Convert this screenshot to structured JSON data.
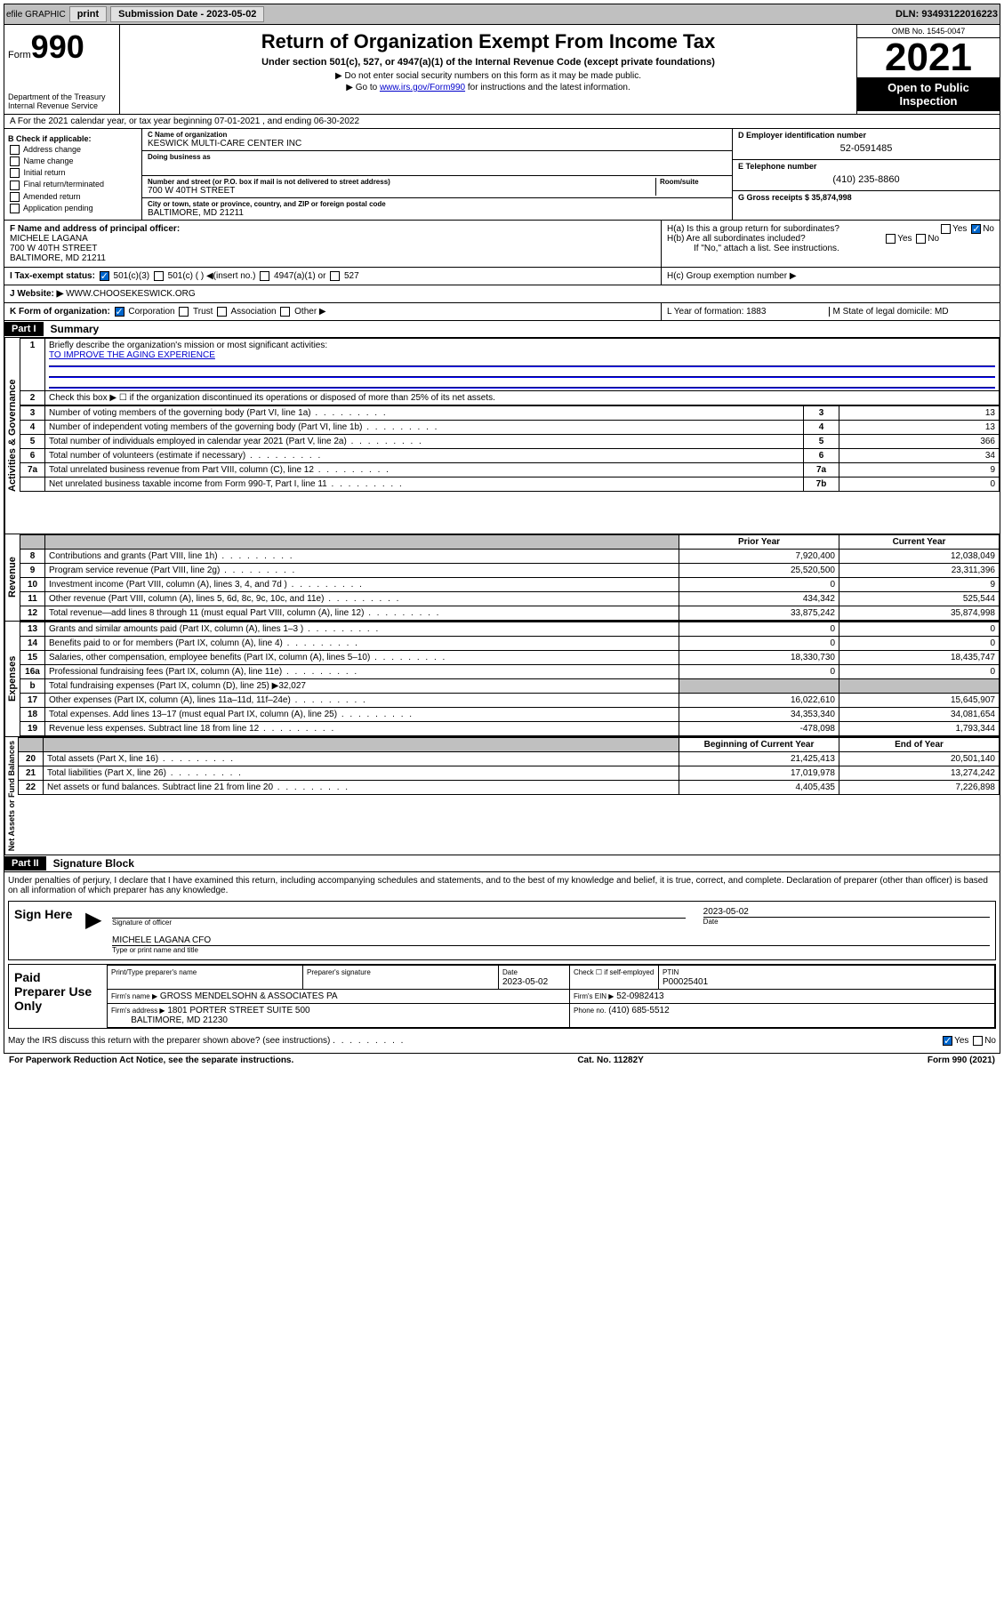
{
  "topbar": {
    "efile": "efile GRAPHIC",
    "print": "print",
    "sub_label": "Submission Date - 2023-05-02",
    "dln_label": "DLN: 93493122016223"
  },
  "header": {
    "form_label": "Form",
    "form_num": "990",
    "dept": "Department of the Treasury\nInternal Revenue Service",
    "title": "Return of Organization Exempt From Income Tax",
    "subtitle": "Under section 501(c), 527, or 4947(a)(1) of the Internal Revenue Code (except private foundations)",
    "instr1": "▶ Do not enter social security numbers on this form as it may be made public.",
    "instr2_pre": "▶ Go to ",
    "instr2_link": "www.irs.gov/Form990",
    "instr2_post": " for instructions and the latest information.",
    "omb": "OMB No. 1545-0047",
    "year": "2021",
    "open": "Open to Public Inspection"
  },
  "row_a": "A For the 2021 calendar year, or tax year beginning 07-01-2021  , and ending 06-30-2022",
  "box_b": {
    "label": "B Check if applicable:",
    "items": [
      "Address change",
      "Name change",
      "Initial return",
      "Final return/terminated",
      "Amended return",
      "Application pending"
    ]
  },
  "box_c": {
    "name_label": "C Name of organization",
    "name": "KESWICK MULTI-CARE CENTER INC",
    "dba_label": "Doing business as",
    "addr_label": "Number and street (or P.O. box if mail is not delivered to street address)",
    "room_label": "Room/suite",
    "addr": "700 W 40TH STREET",
    "city_label": "City or town, state or province, country, and ZIP or foreign postal code",
    "city": "BALTIMORE, MD  21211"
  },
  "box_d": {
    "label": "D Employer identification number",
    "val": "52-0591485"
  },
  "box_e": {
    "label": "E Telephone number",
    "val": "(410) 235-8860"
  },
  "box_g": {
    "label": "G Gross receipts $ 35,874,998"
  },
  "box_f": {
    "label": "F  Name and address of principal officer:",
    "name": "MICHELE LAGANA",
    "addr1": "700 W 40TH STREET",
    "addr2": "BALTIMORE, MD  21211"
  },
  "box_h": {
    "ha": "H(a)  Is this a group return for subordinates?",
    "hb": "H(b)  Are all subordinates included?",
    "hb_note": "If \"No,\" attach a list. See instructions.",
    "hc": "H(c)  Group exemption number ▶"
  },
  "box_i": {
    "label": "I  Tax-exempt status:",
    "opts": [
      "501(c)(3)",
      "501(c) (  ) ◀(insert no.)",
      "4947(a)(1) or",
      "527"
    ]
  },
  "box_j": {
    "label": "J  Website: ▶",
    "val": "WWW.CHOOSEKESWICK.ORG"
  },
  "box_k": {
    "label": "K Form of organization:",
    "opts": [
      "Corporation",
      "Trust",
      "Association",
      "Other ▶"
    ]
  },
  "box_l": {
    "label": "L Year of formation: 1883"
  },
  "box_m": {
    "label": "M State of legal domicile: MD"
  },
  "part1": {
    "header": "Part I",
    "title": "Summary",
    "q1": "Briefly describe the organization's mission or most significant activities:",
    "q1_ans": "TO IMPROVE THE AGING EXPERIENCE",
    "q2": "Check this box ▶ ☐  if the organization discontinued its operations or disposed of more than 25% of its net assets.",
    "vert_labels": [
      "Activities & Governance",
      "Revenue",
      "Expenses",
      "Net Assets or Fund Balances"
    ],
    "gov_rows": [
      {
        "n": "3",
        "desc": "Number of voting members of the governing body (Part VI, line 1a)",
        "box": "3",
        "val": "13"
      },
      {
        "n": "4",
        "desc": "Number of independent voting members of the governing body (Part VI, line 1b)",
        "box": "4",
        "val": "13"
      },
      {
        "n": "5",
        "desc": "Total number of individuals employed in calendar year 2021 (Part V, line 2a)",
        "box": "5",
        "val": "366"
      },
      {
        "n": "6",
        "desc": "Total number of volunteers (estimate if necessary)",
        "box": "6",
        "val": "34"
      },
      {
        "n": "7a",
        "desc": "Total unrelated business revenue from Part VIII, column (C), line 12",
        "box": "7a",
        "val": "9"
      },
      {
        "n": "",
        "desc": "Net unrelated business taxable income from Form 990-T, Part I, line 11",
        "box": "7b",
        "val": "0"
      }
    ],
    "col_hdr_prior": "Prior Year",
    "col_hdr_current": "Current Year",
    "rev_rows": [
      {
        "n": "8",
        "desc": "Contributions and grants (Part VIII, line 1h)",
        "prior": "7,920,400",
        "curr": "12,038,049"
      },
      {
        "n": "9",
        "desc": "Program service revenue (Part VIII, line 2g)",
        "prior": "25,520,500",
        "curr": "23,311,396"
      },
      {
        "n": "10",
        "desc": "Investment income (Part VIII, column (A), lines 3, 4, and 7d )",
        "prior": "0",
        "curr": "9"
      },
      {
        "n": "11",
        "desc": "Other revenue (Part VIII, column (A), lines 5, 6d, 8c, 9c, 10c, and 11e)",
        "prior": "434,342",
        "curr": "525,544"
      },
      {
        "n": "12",
        "desc": "Total revenue—add lines 8 through 11 (must equal Part VIII, column (A), line 12)",
        "prior": "33,875,242",
        "curr": "35,874,998"
      }
    ],
    "exp_rows": [
      {
        "n": "13",
        "desc": "Grants and similar amounts paid (Part IX, column (A), lines 1–3 )",
        "prior": "0",
        "curr": "0"
      },
      {
        "n": "14",
        "desc": "Benefits paid to or for members (Part IX, column (A), line 4)",
        "prior": "0",
        "curr": "0"
      },
      {
        "n": "15",
        "desc": "Salaries, other compensation, employee benefits (Part IX, column (A), lines 5–10)",
        "prior": "18,330,730",
        "curr": "18,435,747"
      },
      {
        "n": "16a",
        "desc": "Professional fundraising fees (Part IX, column (A), line 11e)",
        "prior": "0",
        "curr": "0"
      },
      {
        "n": "b",
        "desc": "Total fundraising expenses (Part IX, column (D), line 25) ▶32,027",
        "prior": "",
        "curr": "",
        "shaded": true
      },
      {
        "n": "17",
        "desc": "Other expenses (Part IX, column (A), lines 11a–11d, 11f–24e)",
        "prior": "16,022,610",
        "curr": "15,645,907"
      },
      {
        "n": "18",
        "desc": "Total expenses. Add lines 13–17 (must equal Part IX, column (A), line 25)",
        "prior": "34,353,340",
        "curr": "34,081,654"
      },
      {
        "n": "19",
        "desc": "Revenue less expenses. Subtract line 18 from line 12",
        "prior": "-478,098",
        "curr": "1,793,344"
      }
    ],
    "col_hdr_begin": "Beginning of Current Year",
    "col_hdr_end": "End of Year",
    "net_rows": [
      {
        "n": "20",
        "desc": "Total assets (Part X, line 16)",
        "prior": "21,425,413",
        "curr": "20,501,140"
      },
      {
        "n": "21",
        "desc": "Total liabilities (Part X, line 26)",
        "prior": "17,019,978",
        "curr": "13,274,242"
      },
      {
        "n": "22",
        "desc": "Net assets or fund balances. Subtract line 21 from line 20",
        "prior": "4,405,435",
        "curr": "7,226,898"
      }
    ]
  },
  "part2": {
    "header": "Part II",
    "title": "Signature Block",
    "decl": "Under penalties of perjury, I declare that I have examined this return, including accompanying schedules and statements, and to the best of my knowledge and belief, it is true, correct, and complete. Declaration of preparer (other than officer) is based on all information of which preparer has any knowledge.",
    "sign_here": "Sign Here",
    "sig_officer": "Signature of officer",
    "sig_date": "2023-05-02",
    "date_label": "Date",
    "officer_name": "MICHELE LAGANA  CFO",
    "name_label": "Type or print name and title",
    "paid_prep": "Paid Preparer Use Only",
    "prep_name_label": "Print/Type preparer's name",
    "prep_sig_label": "Preparer's signature",
    "prep_date": "2023-05-02",
    "check_self": "Check ☐ if self-employed",
    "ptin_label": "PTIN",
    "ptin": "P00025401",
    "firm_name_label": "Firm's name    ▶",
    "firm_name": "GROSS MENDELSOHN & ASSOCIATES PA",
    "firm_ein_label": "Firm's EIN ▶",
    "firm_ein": "52-0982413",
    "firm_addr_label": "Firm's address ▶",
    "firm_addr1": "1801 PORTER STREET SUITE 500",
    "firm_addr2": "BALTIMORE, MD  21230",
    "phone_label": "Phone no.",
    "phone": "(410) 685-5512",
    "discuss": "May the IRS discuss this return with the preparer shown above? (see instructions)"
  },
  "footer": {
    "left": "For Paperwork Reduction Act Notice, see the separate instructions.",
    "mid": "Cat. No. 11282Y",
    "right": "Form 990 (2021)"
  }
}
